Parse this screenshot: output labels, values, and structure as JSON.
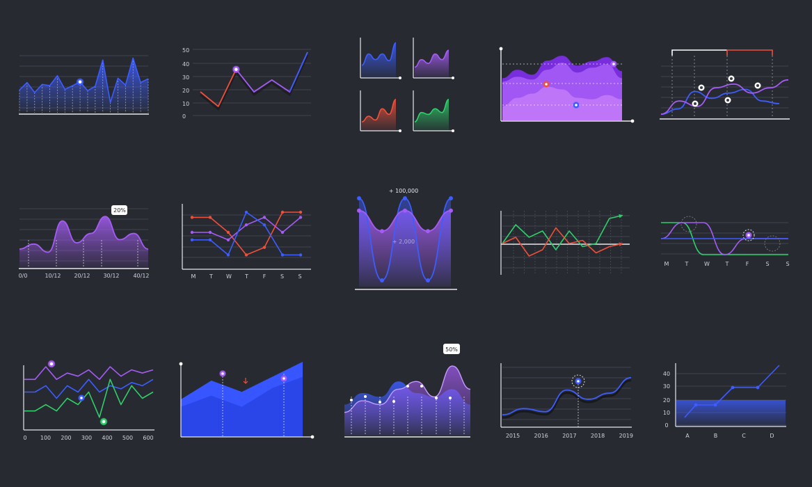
{
  "colors": {
    "background": "#272a31",
    "blue": "#3d5dff",
    "violet": "#a55cf5",
    "red": "#f0503a",
    "green": "#2fd06a",
    "axis": "#e8e8ee",
    "grid": "#4a4e58"
  },
  "chart_data": [
    {
      "id": "c1",
      "type": "area",
      "values": [
        34,
        46,
        30,
        43,
        41,
        57,
        35,
        41,
        47,
        33,
        40,
        82,
        14,
        53,
        42,
        85,
        46,
        52
      ],
      "highlight_index": 8
    },
    {
      "id": "c2",
      "type": "line",
      "yticks": [
        "50",
        "40",
        "30",
        "20",
        "10",
        "0"
      ],
      "ylim": [
        0,
        50
      ],
      "series": [
        {
          "color": "red",
          "values": [
            20,
            9,
            37,
            20,
            29,
            20,
            50
          ]
        },
        {
          "color": "violet",
          "values": [
            20,
            9,
            37,
            20,
            29,
            20,
            50
          ]
        }
      ],
      "highlight_index": 2
    },
    {
      "id": "c3",
      "type": "area",
      "small_multiples": [
        {
          "color": "blue",
          "values": [
            30,
            60,
            45,
            60,
            42,
            90
          ]
        },
        {
          "color": "violet",
          "values": [
            25,
            45,
            35,
            60,
            45,
            70
          ]
        },
        {
          "color": "red",
          "values": [
            20,
            35,
            25,
            55,
            40,
            80
          ]
        },
        {
          "color": "green",
          "values": [
            20,
            45,
            40,
            55,
            45,
            80
          ]
        }
      ]
    },
    {
      "id": "c4",
      "type": "area",
      "series": [
        {
          "color": "violet-dark",
          "values": [
            60,
            72,
            65,
            85,
            92,
            78,
            84,
            90,
            70
          ]
        },
        {
          "color": "violet",
          "values": [
            55,
            62,
            58,
            72,
            82,
            68,
            75,
            80,
            60
          ]
        },
        {
          "color": "violet-light",
          "values": [
            20,
            32,
            38,
            48,
            44,
            32,
            30,
            36,
            30
          ]
        }
      ]
    },
    {
      "id": "c5",
      "type": "line",
      "series": [
        {
          "color": "violet",
          "values": [
            5,
            30,
            20,
            55,
            62,
            45,
            55,
            70
          ]
        },
        {
          "color": "blue",
          "values": [
            5,
            15,
            48,
            35,
            45,
            52,
            30,
            25
          ]
        }
      ]
    },
    {
      "id": "c6",
      "type": "area",
      "values": [
        30,
        38,
        25,
        75,
        40,
        55,
        82,
        45,
        55,
        30
      ],
      "xticks": [
        "0/0",
        "10/12",
        "20/12",
        "30/12",
        "40/12"
      ],
      "callout": "20%"
    },
    {
      "id": "c7",
      "type": "line",
      "xticks": [
        "M",
        "T",
        "W",
        "T",
        "F",
        "S",
        "S"
      ],
      "series": [
        {
          "color": "red",
          "values": [
            70,
            70,
            50,
            20,
            30,
            80,
            80
          ]
        },
        {
          "color": "violet",
          "values": [
            50,
            50,
            40,
            60,
            70,
            50,
            70
          ]
        },
        {
          "color": "blue",
          "values": [
            40,
            40,
            20,
            80,
            60,
            20,
            20
          ]
        }
      ]
    },
    {
      "id": "c8",
      "type": "line",
      "series": [
        {
          "color": "blue",
          "values": [
            100,
            -100,
            100,
            -100,
            100
          ]
        },
        {
          "color": "violet",
          "values": [
            70,
            20,
            70,
            20,
            70
          ]
        }
      ],
      "annotations": [
        "+ 100,000",
        "+ 2,000"
      ]
    },
    {
      "id": "c9",
      "type": "line",
      "series": [
        {
          "color": "green",
          "values": [
            0,
            30,
            10,
            20,
            -10,
            20,
            -5,
            0,
            40,
            45
          ]
        },
        {
          "color": "red",
          "values": [
            0,
            10,
            -20,
            -10,
            25,
            0,
            5,
            -15,
            -5,
            0
          ]
        }
      ]
    },
    {
      "id": "c10",
      "type": "line",
      "xticks": [
        "M",
        "T",
        "W",
        "T",
        "F",
        "S",
        "S"
      ],
      "series": [
        {
          "color": "green",
          "values": [
            1,
            1,
            0,
            0,
            0,
            0,
            0
          ]
        },
        {
          "color": "violet",
          "values": [
            0.5,
            1,
            1,
            0,
            0.5,
            0.5,
            0.5
          ]
        },
        {
          "color": "blue",
          "values": [
            0.5,
            0.5,
            0.5,
            0.5,
            0.5,
            0.5,
            0.5
          ]
        }
      ]
    },
    {
      "id": "c11",
      "type": "line",
      "xticks": [
        "0",
        "100",
        "200",
        "300",
        "400",
        "500",
        "600"
      ],
      "series": [
        {
          "color": "violet",
          "values": [
            80,
            80,
            100,
            80,
            90,
            85,
            95,
            80,
            100,
            85,
            95,
            90,
            95
          ]
        },
        {
          "color": "blue",
          "values": [
            60,
            60,
            70,
            50,
            70,
            60,
            80,
            60,
            70,
            65,
            75,
            70,
            80
          ]
        },
        {
          "color": "green",
          "values": [
            30,
            30,
            40,
            30,
            50,
            40,
            60,
            20,
            80,
            40,
            70,
            50,
            60
          ]
        }
      ]
    },
    {
      "id": "c12",
      "type": "area",
      "series": [
        {
          "color": "blue",
          "values": [
            50,
            75,
            60,
            80,
            100
          ]
        },
        {
          "color": "blue-dark",
          "values": [
            40,
            55,
            40,
            65,
            80
          ]
        }
      ]
    },
    {
      "id": "c13",
      "type": "area",
      "callout": "50%",
      "series": [
        {
          "color": "blue",
          "values": [
            40,
            55,
            50,
            70,
            55,
            50,
            60,
            40
          ]
        },
        {
          "color": "violet",
          "values": [
            30,
            45,
            40,
            60,
            70,
            50,
            90,
            60
          ]
        }
      ]
    },
    {
      "id": "c14",
      "type": "line",
      "xticks": [
        "2015",
        "2016",
        "2017",
        "2018",
        "2019"
      ],
      "highlight_index": 2,
      "series": [
        {
          "color": "blue",
          "values": [
            20,
            30,
            25,
            60,
            45,
            55,
            80
          ]
        }
      ]
    },
    {
      "id": "c15",
      "type": "line",
      "yticks": [
        "40",
        "30",
        "20",
        "10",
        "0"
      ],
      "xticks": [
        "A",
        "B",
        "C",
        "D"
      ],
      "ylim": [
        0,
        50
      ],
      "series": [
        {
          "color": "blue",
          "values": [
            5,
            15,
            15,
            29,
            29,
            45
          ]
        }
      ],
      "band": [
        0,
        20
      ]
    }
  ]
}
